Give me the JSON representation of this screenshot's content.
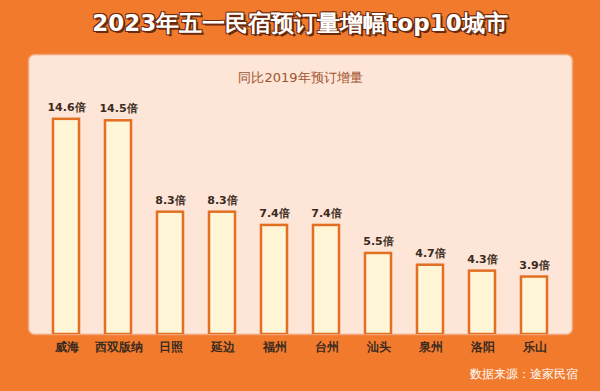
{
  "chart_data": {
    "type": "bar",
    "title": "2023年五一民宿预订量增幅top10城市",
    "subtitle": "同比2019年预订增量",
    "source": "数据来源：途家民宿",
    "categories": [
      "威海",
      "西双版纳",
      "日照",
      "延边",
      "福州",
      "台州",
      "汕头",
      "泉州",
      "洛阳",
      "乐山"
    ],
    "values": [
      14.6,
      14.5,
      8.3,
      8.3,
      7.4,
      7.4,
      5.5,
      4.7,
      4.3,
      3.9
    ],
    "value_labels": [
      "14.6倍",
      "14.5倍",
      "8.3倍",
      "8.3倍",
      "7.4倍",
      "7.4倍",
      "5.5倍",
      "4.7倍",
      "4.3倍",
      "3.9倍"
    ],
    "color": "#fff6d8",
    "ylim": [
      0,
      19
    ],
    "data_labels": true,
    "tick_labels": "x",
    "grid": false
  }
}
